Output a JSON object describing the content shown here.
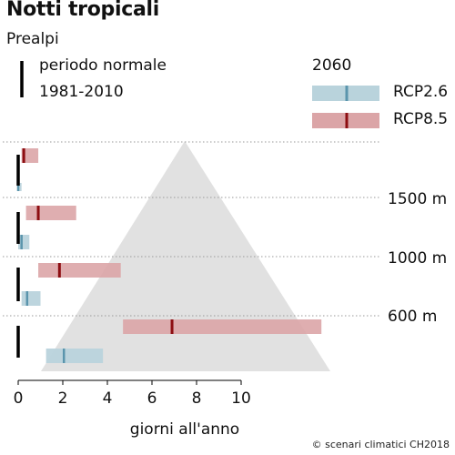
{
  "header": {
    "title": "Notti tropicali",
    "subtitle": "Prealpi"
  },
  "legend": {
    "normal_line1": "periodo normale",
    "normal_line2": "1981-2010",
    "future_label": "2060",
    "rcp26_label": "RCP2.6",
    "rcp85_label": "RCP8.5"
  },
  "footer": {
    "credit": "© scenari climatici CH2018"
  },
  "colors": {
    "rcp26_band": "#b9d3dc",
    "rcp26_median": "#5b95ad",
    "rcp85_band": "#dba5a7",
    "rcp85_median": "#8d0e12",
    "normal": "#000000",
    "mountain": "#dcdcdc"
  },
  "chart_data": {
    "type": "range_bars",
    "xlabel": "giorni all'anno",
    "xlim": [
      0,
      10
    ],
    "xticks": [
      0,
      2,
      4,
      6,
      8,
      10
    ],
    "xtick_labels": [
      "0",
      "2",
      "4",
      "6",
      "8",
      "10"
    ],
    "grid": "dotted elevation lines",
    "elevations": [
      {
        "label": "",
        "normal": 0,
        "rcp26": {
          "low": 0.0,
          "median": 0.0,
          "high": 0.15
        },
        "rcp85": {
          "low": 0.15,
          "median": 0.25,
          "high": 0.9
        }
      },
      {
        "label": "1500 m",
        "normal": 0,
        "rcp26": {
          "low": 0.0,
          "median": 0.15,
          "high": 0.5
        },
        "rcp85": {
          "low": 0.35,
          "median": 0.9,
          "high": 2.6
        }
      },
      {
        "label": "1000 m",
        "normal": 0,
        "rcp26": {
          "low": 0.15,
          "median": 0.4,
          "high": 1.0
        },
        "rcp85": {
          "low": 0.9,
          "median": 1.85,
          "high": 4.6
        }
      },
      {
        "label": "600 m",
        "normal": 0,
        "rcp26": {
          "low": 1.25,
          "median": 2.05,
          "high": 3.8
        },
        "rcp85": {
          "low": 4.7,
          "median": 6.9,
          "high": 13.6
        }
      }
    ]
  }
}
